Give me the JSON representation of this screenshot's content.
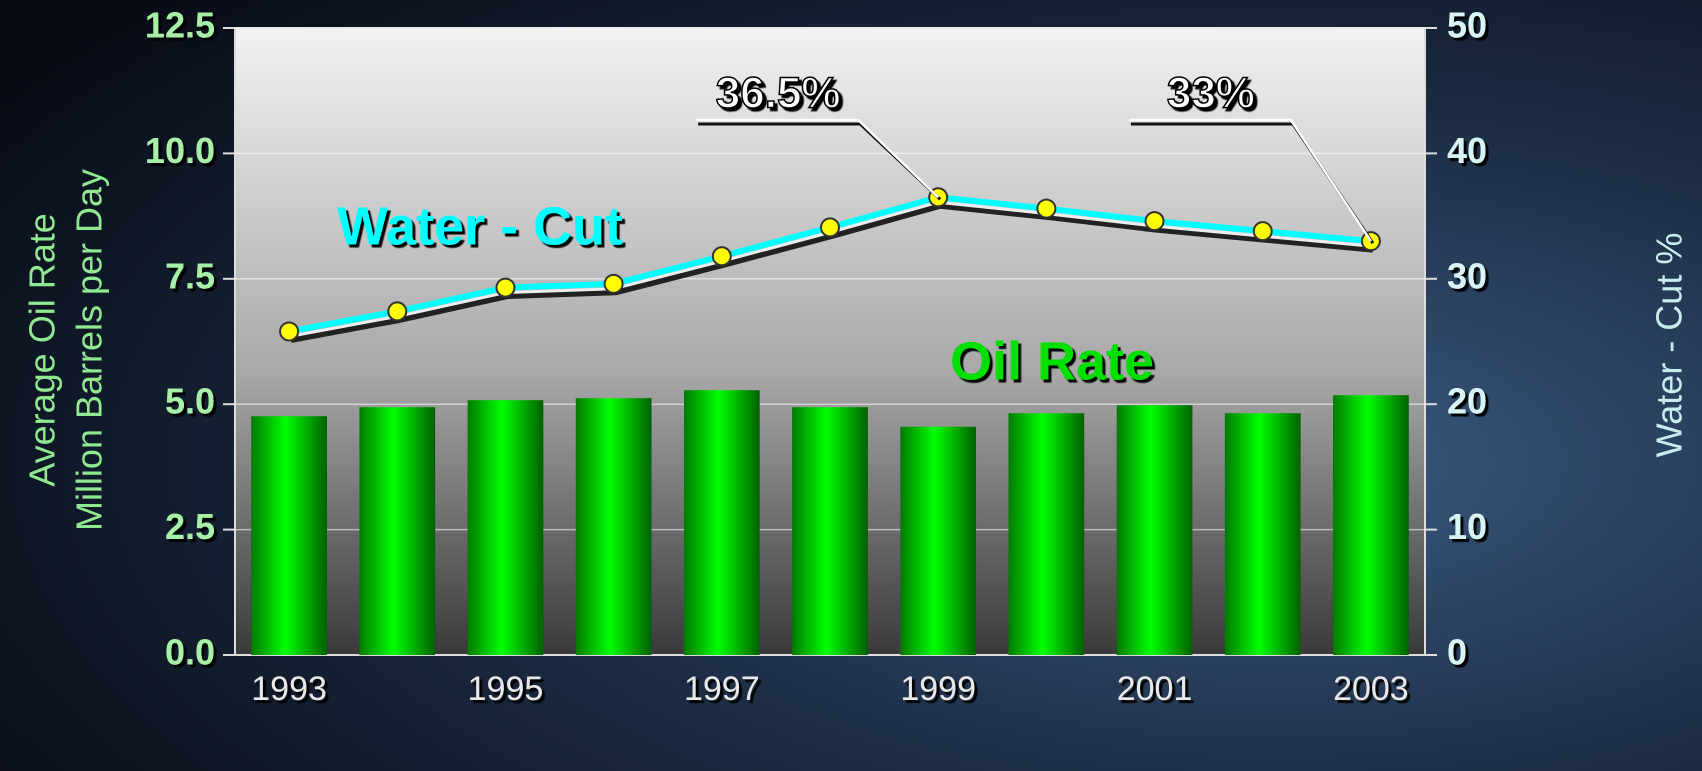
{
  "chart_data": {
    "type": "bar",
    "categories": [
      "1993",
      null,
      "1995",
      null,
      "1997",
      null,
      "1999",
      null,
      "2001",
      null,
      "2003"
    ],
    "series": [
      {
        "name": "Oil Rate",
        "color": "#00e000",
        "values": [
          4.76,
          4.94,
          5.08,
          5.12,
          5.28,
          4.94,
          4.55,
          4.82,
          4.98,
          4.82,
          5.18
        ]
      },
      {
        "name": "Water - Cut",
        "color": "#00ffff",
        "axis": "y2",
        "marker_color": "#ffff00",
        "values": [
          25.8,
          27.4,
          29.3,
          29.6,
          31.8,
          34.1,
          36.5,
          35.6,
          34.6,
          33.8,
          33
        ],
        "value_labels": [
          null,
          null,
          null,
          null,
          null,
          null,
          "36.5%",
          null,
          null,
          null,
          "33%"
        ]
      }
    ],
    "ylabel": [
      "Average Oil Rate",
      "Million Barrels per Day"
    ],
    "y2label": "Water - Cut %",
    "ylim": [
      0,
      12.5
    ],
    "yticks": [
      {
        "value": 0,
        "label": "0.0"
      },
      2.5,
      {
        "value": 5,
        "label": "5.0"
      },
      7.5,
      {
        "value": 10,
        "label": "10.0"
      },
      12.5
    ],
    "y2lim": [
      0,
      50
    ],
    "y2ticks": [
      0,
      10,
      20,
      30,
      40,
      50
    ],
    "grid": true
  }
}
